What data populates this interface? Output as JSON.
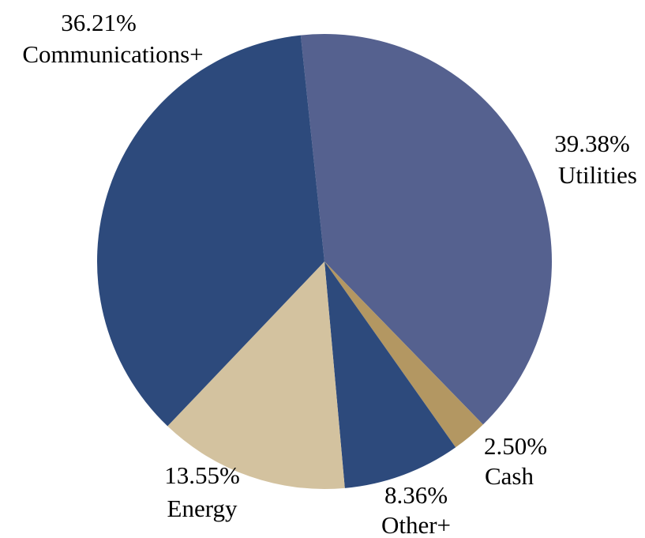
{
  "chart_data": {
    "type": "pie",
    "categories": [
      "Utilities",
      "Cash",
      "Other+",
      "Energy",
      "Communications+"
    ],
    "values": [
      39.38,
      2.5,
      8.36,
      13.55,
      36.21
    ],
    "value_labels": [
      "39.38%",
      "2.50%",
      "8.36%",
      "13.55%",
      "36.21%"
    ],
    "colors": [
      "#55618f",
      "#b39762",
      "#2d4a7c",
      "#d3c29f",
      "#2d4a7c"
    ]
  }
}
